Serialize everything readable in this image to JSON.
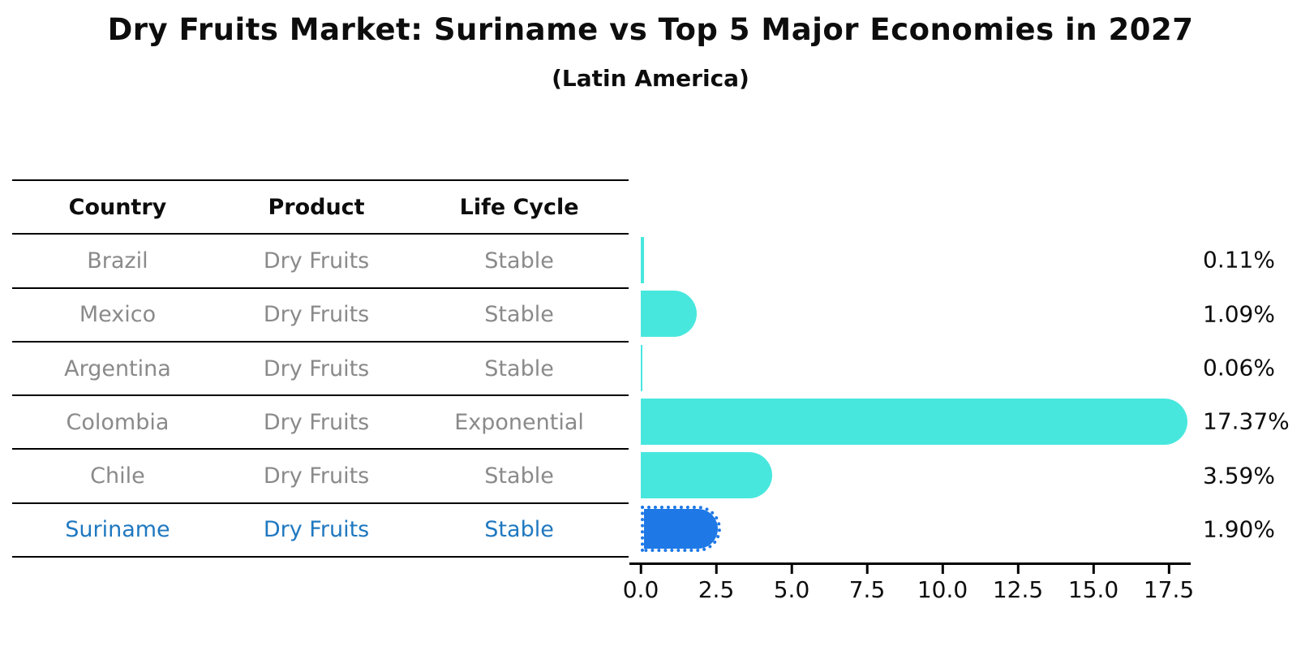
{
  "title": "Dry Fruits Market: Suriname vs Top 5 Major Economies in 2027",
  "subtitle": "(Latin America)",
  "table": {
    "headers": [
      "Country",
      "Product",
      "Life Cycle"
    ],
    "rows": [
      {
        "country": "Brazil",
        "product": "Dry Fruits",
        "life_cycle": "Stable",
        "highlight": false
      },
      {
        "country": "Mexico",
        "product": "Dry Fruits",
        "life_cycle": "Stable",
        "highlight": false
      },
      {
        "country": "Argentina",
        "product": "Dry Fruits",
        "life_cycle": "Stable",
        "highlight": false
      },
      {
        "country": "Colombia",
        "product": "Dry Fruits",
        "life_cycle": "Exponential",
        "highlight": false
      },
      {
        "country": "Chile",
        "product": "Dry Fruits",
        "life_cycle": "Stable",
        "highlight": false
      },
      {
        "country": "Suriname",
        "product": "Dry Fruits",
        "life_cycle": "Stable",
        "highlight": true
      }
    ]
  },
  "chart_data": {
    "type": "bar",
    "orientation": "horizontal",
    "categories": [
      "Brazil",
      "Mexico",
      "Argentina",
      "Colombia",
      "Chile",
      "Suriname"
    ],
    "values": [
      0.11,
      1.09,
      0.06,
      17.37,
      3.59,
      1.9
    ],
    "value_labels": [
      "0.11%",
      "1.09%",
      "0.06%",
      "17.37%",
      "3.59%",
      "1.90%"
    ],
    "xticks": [
      "0.0",
      "2.5",
      "5.0",
      "7.5",
      "10.0",
      "12.5",
      "15.0",
      "17.5"
    ],
    "xtick_values": [
      0,
      2.5,
      5,
      7.5,
      10,
      12.5,
      15,
      17.5
    ],
    "xlim": [
      0,
      18.3
    ],
    "highlight_index": 5,
    "grid": false,
    "legend": false,
    "title": "Dry Fruits Market: Suriname vs Top 5 Major Economies in 2027",
    "xlabel": "",
    "ylabel": ""
  },
  "colors": {
    "bar_default": "#48E7DE",
    "bar_highlight": "#1E78E6",
    "highlight_text": "#1F78C0",
    "row_text": "#8A8A8A",
    "header_text": "#0D0D0D",
    "axis": "#000000",
    "background": "#FFFFFF"
  }
}
